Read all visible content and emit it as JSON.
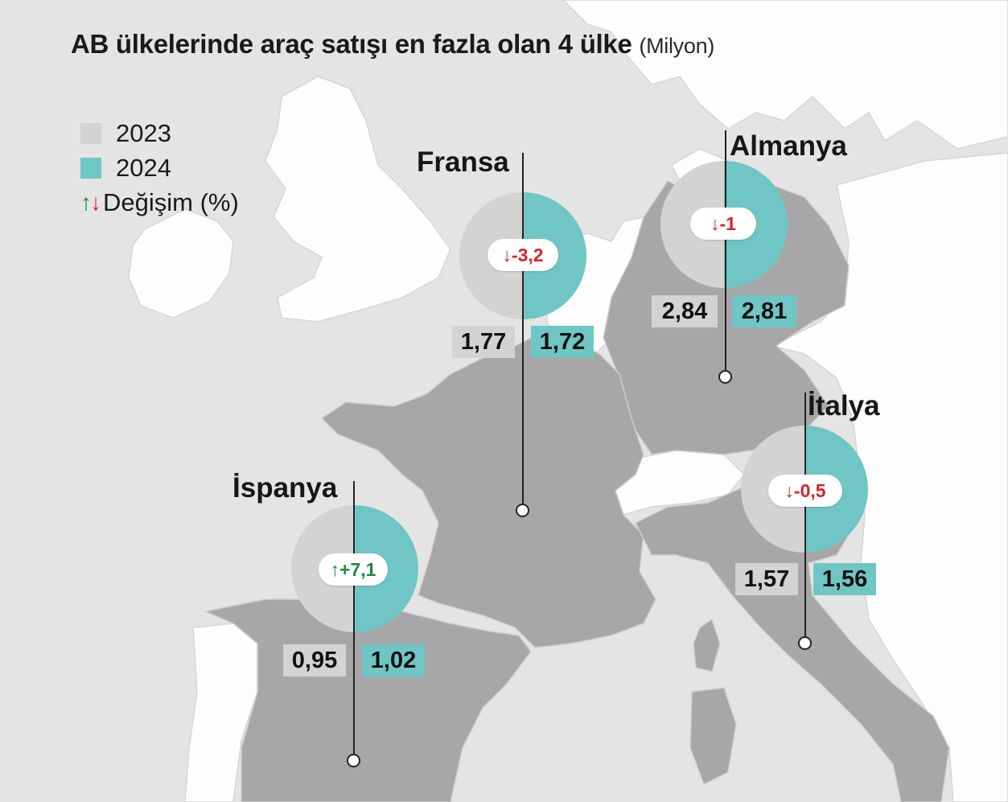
{
  "title": {
    "main": "AB ülkelerinde araç satışı en fazla olan 4 ülke",
    "unit": "(Milyon)"
  },
  "legend": [
    {
      "label": "2023",
      "color": "#d3d3d3"
    },
    {
      "label": "2024",
      "color": "#6fc6c4"
    },
    {
      "label": "Değişim (%)",
      "up_arrow": "↑",
      "down_arrow": "↓"
    }
  ],
  "colors": {
    "y2023": "#d3d3d3",
    "y2024": "#6fc6c4",
    "increase": "#1e8a3c",
    "decrease": "#d8232a",
    "land_highlight": "#a7a7a9",
    "land_other": "#ffffff",
    "sea": "#e4e4e4"
  },
  "countries": [
    {
      "name": "Fransa",
      "v2023": "1,77",
      "v2024": "1,72",
      "change": "↓-3,2",
      "direction": "down"
    },
    {
      "name": "Almanya",
      "v2023": "2,84",
      "v2024": "2,81",
      "change": "↓-1",
      "direction": "down"
    },
    {
      "name": "İtalya",
      "v2023": "1,57",
      "v2024": "1,56",
      "change": "↓-0,5",
      "direction": "down"
    },
    {
      "name": "İspanya",
      "v2023": "0,95",
      "v2024": "1,02",
      "change": "↑+7,1",
      "direction": "up"
    }
  ]
}
